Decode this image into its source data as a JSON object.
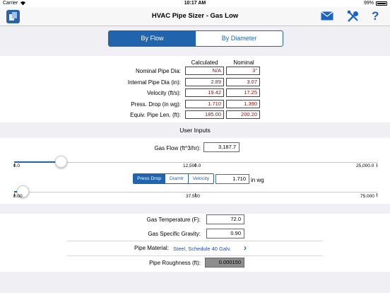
{
  "status": {
    "carrier": "Carrier",
    "time": "10:17 AM",
    "battery": "99%"
  },
  "nav": {
    "title": "HVAC Pipe Sizer - Gas Low"
  },
  "tabs": [
    {
      "label": "By Flow",
      "selected": true
    },
    {
      "label": "By Diameter",
      "selected": false
    }
  ],
  "results": {
    "col_calculated": "Calculated",
    "col_nominal": "Nominal",
    "rows": [
      {
        "label": "Nominal Pipe Dia:",
        "calc": "N/A",
        "nom": "3\""
      },
      {
        "label": "Internal Pipe Dia (in):",
        "calc": "2.89",
        "nom": "3.07"
      },
      {
        "label": "Velocity (ft/s):",
        "calc": "19.42",
        "nom": "17.25"
      },
      {
        "label": "Press. Drop (in wg):",
        "calc": "1.710",
        "nom": "1.390"
      },
      {
        "label": "Equiv. Pipe Len. (ft):",
        "calc": "185.00",
        "nom": "200.20"
      }
    ]
  },
  "inputs": {
    "title": "User Inputs",
    "gas_flow_label": "Gas Flow (ft^3/hr):",
    "gas_flow_value": "3,187.7",
    "flow_slider": {
      "min": "0.0",
      "mid": "12,500.0",
      "max": "25,000.0",
      "level": 0.128
    },
    "mode_tabs": [
      {
        "label": "Press Drop",
        "selected": true
      },
      {
        "label": "Diamtr",
        "selected": false
      },
      {
        "label": "Velocity",
        "selected": false
      }
    ],
    "mode_value": "1.710",
    "mode_unit": "in wg",
    "mode_slider": {
      "min": "0.00",
      "mid": "37.500",
      "max": "75.000",
      "level": 0.023
    }
  },
  "props": {
    "temp_label": "Gas Temperature (F):",
    "temp_value": "72.0",
    "sg_label": "Gas Specific Gravity:",
    "sg_value": "0.90",
    "material_label": "Pipe Material:",
    "material_value": "Steel, Schedule 40 Galv.",
    "rough_label": "Pipe Roughness (ft):",
    "rough_value": "0.000150"
  },
  "colors": {
    "accent": "#1f64ad",
    "result_text": "#8b1010",
    "panel_bg": "#efeff4"
  },
  "icons": [
    "wifi-icon",
    "app-icon",
    "mail-icon",
    "tools-icon",
    "help-icon",
    "chevron-right-icon"
  ]
}
